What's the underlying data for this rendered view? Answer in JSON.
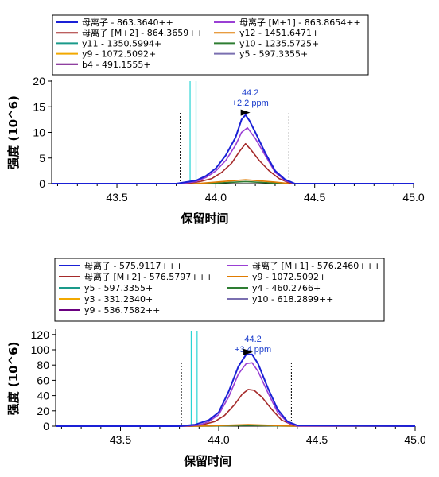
{
  "colors": {
    "blue": "#1a20d6",
    "purple": "#9a3fd4",
    "darkred": "#a52a2a",
    "orange": "#e07b00",
    "teal": "#1a9a8a",
    "green": "#2e7d32",
    "amber": "#f2a900",
    "slate": "#7a6fb0",
    "darkpurple": "#6a0080",
    "cyan": "#2ad4d4",
    "annotation": "#1a3ccc"
  },
  "chart_data": [
    {
      "type": "line",
      "xlabel": "保留时间",
      "ylabel": "强度 (10^6)",
      "xlim": [
        43.17,
        45.0
      ],
      "ylim": [
        0,
        20
      ],
      "xticks": [
        "43.5",
        "44.0",
        "44.5",
        "45.0"
      ],
      "yticks": [
        "0",
        "5",
        "10",
        "15",
        "20"
      ],
      "integration_bounds": [
        43.82,
        44.37
      ],
      "id_markers": [
        43.87,
        43.9
      ],
      "annotation": {
        "rt": "44.2",
        "ppm": "+2.2 ppm",
        "x": 44.15
      },
      "legend": [
        {
          "label": "母离子 - 863.3640++",
          "color": "blue"
        },
        {
          "label": "母离子 [M+1] - 863.8654++",
          "color": "purple"
        },
        {
          "label": "母离子 [M+2] - 864.3659++",
          "color": "darkred"
        },
        {
          "label": "y12 - 1451.6471+",
          "color": "orange"
        },
        {
          "label": "y11 - 1350.5994+",
          "color": "teal"
        },
        {
          "label": "y10 - 1235.5725+",
          "color": "green"
        },
        {
          "label": "y9 - 1072.5092+",
          "color": "amber"
        },
        {
          "label": "y5 - 597.3355+",
          "color": "slate"
        },
        {
          "label": "b4 - 491.1555+",
          "color": "darkpurple"
        }
      ],
      "series": [
        {
          "color": "blue",
          "x": [
            43.17,
            43.8,
            43.9,
            43.95,
            44.0,
            44.05,
            44.1,
            44.13,
            44.15,
            44.17,
            44.2,
            44.25,
            44.3,
            44.35,
            44.4,
            45.0
          ],
          "y": [
            0,
            0,
            0.6,
            1.5,
            3,
            5.5,
            9,
            12.5,
            13.4,
            12.3,
            10,
            6,
            2.5,
            0.8,
            0,
            0
          ]
        },
        {
          "color": "purple",
          "x": [
            43.17,
            43.82,
            43.9,
            43.95,
            44.0,
            44.05,
            44.1,
            44.13,
            44.16,
            44.2,
            44.25,
            44.3,
            44.35,
            44.4,
            45.0
          ],
          "y": [
            0,
            0,
            0.4,
            1.2,
            2.5,
            4.5,
            7.5,
            10,
            10.9,
            8.8,
            5.5,
            2.2,
            0.6,
            0,
            0
          ]
        },
        {
          "color": "darkred",
          "x": [
            43.17,
            43.85,
            43.92,
            43.98,
            44.03,
            44.08,
            44.12,
            44.15,
            44.18,
            44.22,
            44.27,
            44.32,
            44.38,
            45.0
          ],
          "y": [
            0,
            0,
            0.4,
            1,
            2.2,
            4,
            6.3,
            7.8,
            6.5,
            4.5,
            2.5,
            1,
            0,
            0
          ]
        },
        {
          "color": "orange",
          "x": [
            43.17,
            43.9,
            44.0,
            44.1,
            44.15,
            44.2,
            44.3,
            44.38,
            45.0
          ],
          "y": [
            0,
            0,
            0.3,
            0.6,
            0.75,
            0.6,
            0.3,
            0,
            0
          ]
        },
        {
          "color": "green",
          "x": [
            43.17,
            43.95,
            44.1,
            44.15,
            44.2,
            44.35,
            45.0
          ],
          "y": [
            0,
            0,
            0.3,
            0.4,
            0.3,
            0,
            0
          ]
        }
      ]
    },
    {
      "type": "line",
      "xlabel": "保留时间",
      "ylabel": "强度 (10^6)",
      "xlim": [
        43.17,
        45.0
      ],
      "ylim": [
        0,
        125
      ],
      "xticks": [
        "43.5",
        "44.0",
        "44.5",
        "45.0"
      ],
      "yticks": [
        "0",
        "20",
        "40",
        "60",
        "80",
        "100",
        "120"
      ],
      "integration_bounds": [
        43.81,
        44.37
      ],
      "id_markers": [
        43.86,
        43.89
      ],
      "annotation": {
        "rt": "44.2",
        "ppm": "+3.4 ppm",
        "x": 44.15
      },
      "legend": [
        {
          "label": "母离子 - 575.9117+++",
          "color": "blue"
        },
        {
          "label": "母离子 [M+1] - 576.2460+++",
          "color": "purple"
        },
        {
          "label": "母离子 [M+2] - 576.5797+++",
          "color": "darkred"
        },
        {
          "label": "y9 - 1072.5092+",
          "color": "orange"
        },
        {
          "label": "y5 - 597.3355+",
          "color": "teal"
        },
        {
          "label": "y4 - 460.2766+",
          "color": "green"
        },
        {
          "label": "y3 - 331.2340+",
          "color": "amber"
        },
        {
          "label": "y10 - 618.2899++",
          "color": "slate"
        },
        {
          "label": "y9 - 536.7582++",
          "color": "darkpurple"
        }
      ],
      "series": [
        {
          "color": "blue",
          "x": [
            43.17,
            43.8,
            43.88,
            43.95,
            44.0,
            44.05,
            44.1,
            44.14,
            44.17,
            44.2,
            44.25,
            44.3,
            44.35,
            44.4,
            45.0
          ],
          "y": [
            0,
            0,
            2,
            8,
            18,
            45,
            78,
            94,
            94,
            82,
            50,
            22,
            6,
            1,
            0
          ]
        },
        {
          "color": "purple",
          "x": [
            43.17,
            43.82,
            43.9,
            43.95,
            44.0,
            44.05,
            44.1,
            44.14,
            44.17,
            44.2,
            44.25,
            44.3,
            44.35,
            44.4,
            45.0
          ],
          "y": [
            0,
            0,
            1.5,
            6,
            15,
            38,
            68,
            82,
            83,
            72,
            44,
            18,
            5,
            0,
            0
          ]
        },
        {
          "color": "darkred",
          "x": [
            43.17,
            43.85,
            43.92,
            43.98,
            44.03,
            44.08,
            44.12,
            44.15,
            44.18,
            44.22,
            44.27,
            44.32,
            44.38,
            45.0
          ],
          "y": [
            0,
            0,
            2,
            6,
            14,
            28,
            42,
            48,
            47,
            38,
            22,
            8,
            1,
            0
          ]
        },
        {
          "color": "orange",
          "x": [
            43.17,
            43.9,
            44.05,
            44.15,
            44.25,
            44.38,
            45.0
          ],
          "y": [
            0,
            0,
            1.2,
            2,
            1.2,
            0,
            0
          ]
        },
        {
          "color": "green",
          "x": [
            43.17,
            43.95,
            44.1,
            44.15,
            44.2,
            44.35,
            45.0
          ],
          "y": [
            0,
            0,
            0.8,
            1.1,
            0.8,
            0,
            0
          ]
        }
      ]
    }
  ]
}
